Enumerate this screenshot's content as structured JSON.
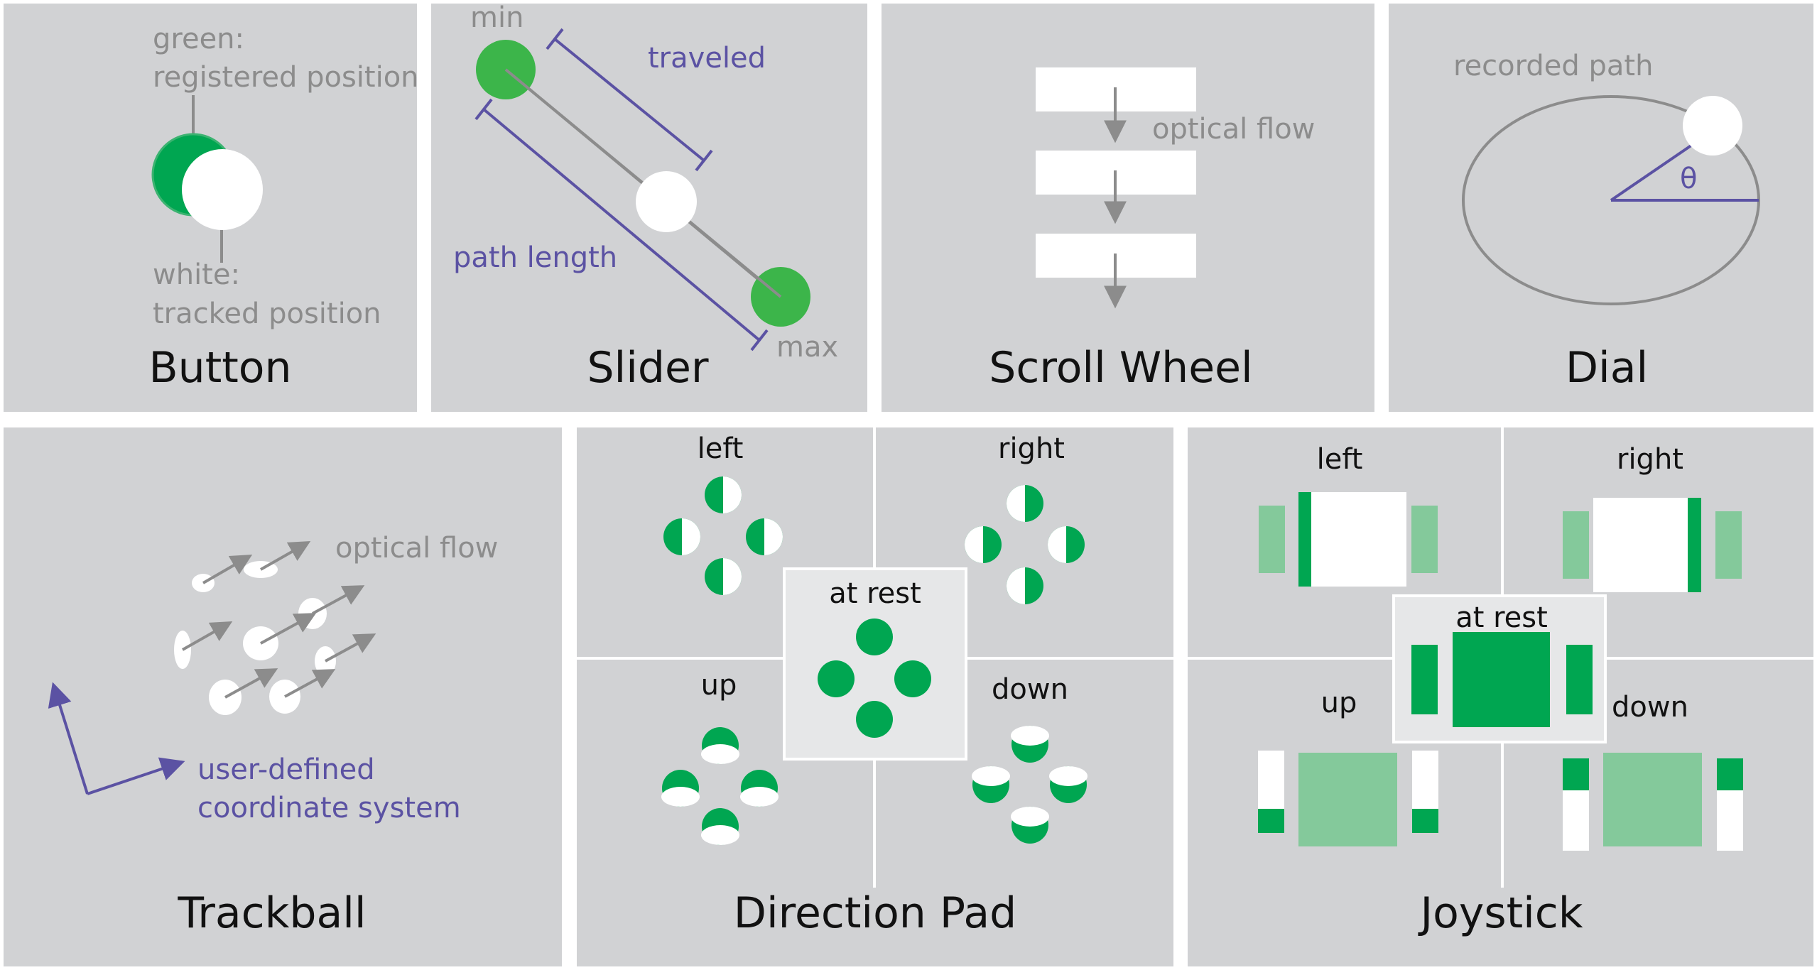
{
  "panels": {
    "button": {
      "title": "Button",
      "green_label_1": "green:",
      "green_label_2": "registered position",
      "white_label_1": "white:",
      "white_label_2": "tracked position"
    },
    "slider": {
      "title": "Slider",
      "min": "min",
      "max": "max",
      "traveled": "traveled",
      "path_length": "path length"
    },
    "scroll_wheel": {
      "title": "Scroll Wheel",
      "flow": "optical flow"
    },
    "dial": {
      "title": "Dial",
      "path": "recorded path",
      "angle": "θ"
    },
    "trackball": {
      "title": "Trackball",
      "flow": "optical flow",
      "coord_1": "user-defined",
      "coord_2": "coordinate system"
    },
    "dpad": {
      "title": "Direction Pad",
      "left": "left",
      "right": "right",
      "up": "up",
      "down": "down",
      "rest": "at rest"
    },
    "joystick": {
      "title": "Joystick",
      "left": "left",
      "right": "right",
      "up": "up",
      "down": "down",
      "rest": "at rest"
    }
  },
  "colors": {
    "panel": "#d1d2d4",
    "green": "#00a651",
    "green_light": "#84c99b",
    "purple": "#5b52a3",
    "gray_line": "#8c8c8c"
  }
}
